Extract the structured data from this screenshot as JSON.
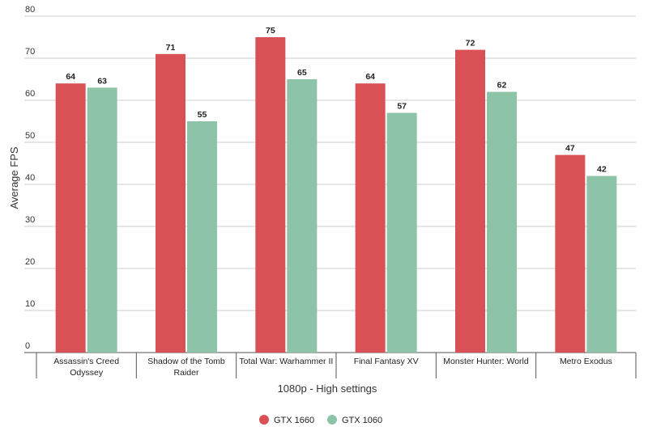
{
  "chart_data": {
    "type": "bar",
    "categories": [
      [
        "Assassin's Creed",
        "Odyssey"
      ],
      [
        "Shadow of the Tomb",
        "Raider"
      ],
      [
        "Total War: Warhammer II"
      ],
      [
        "Final Fantasy XV"
      ],
      [
        "Monster Hunter: World"
      ],
      [
        "Metro Exodus"
      ]
    ],
    "series": [
      {
        "name": "GTX 1660",
        "color": "#d95055",
        "values": [
          64,
          71,
          75,
          64,
          72,
          47
        ]
      },
      {
        "name": "GTX 1060",
        "color": "#8dc3a6",
        "values": [
          63,
          55,
          65,
          57,
          62,
          42
        ]
      }
    ],
    "xlabel": "1080p - High settings",
    "ylabel": "Average FPS",
    "ylim": [
      0,
      80
    ],
    "yticks": [
      0,
      10,
      20,
      30,
      40,
      50,
      60,
      70,
      80
    ],
    "grid": true,
    "legend_position": "bottom-center"
  }
}
